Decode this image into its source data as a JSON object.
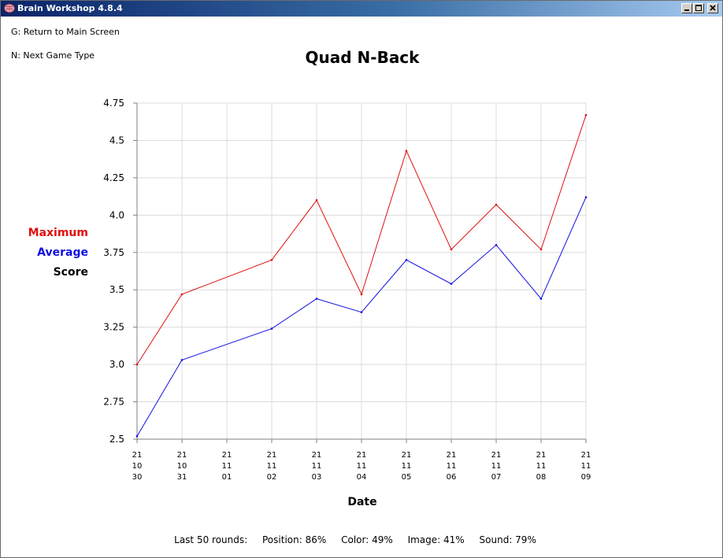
{
  "window": {
    "title": "Brain Workshop 4.8.4",
    "icon": "brain-icon",
    "controls": [
      "minimize-icon",
      "maximize-icon",
      "close-icon"
    ]
  },
  "hints": {
    "return": "G: Return to Main Screen",
    "next": "N: Next Game Type"
  },
  "legend": {
    "maximum": "Maximum",
    "average": "Average",
    "score": "Score"
  },
  "footer": {
    "prefix": "Last 50 rounds:",
    "position": "Position: 86%",
    "color": "Color: 49%",
    "image": "Image: 41%",
    "sound": "Sound: 79%"
  },
  "chart_data": {
    "type": "line",
    "title": "Quad N-Back",
    "xlabel": "Date",
    "ylabel": "Score",
    "categories": [
      [
        "21",
        "10",
        "30"
      ],
      [
        "21",
        "10",
        "31"
      ],
      [
        "21",
        "11",
        "01"
      ],
      [
        "21",
        "11",
        "02"
      ],
      [
        "21",
        "11",
        "03"
      ],
      [
        "21",
        "11",
        "04"
      ],
      [
        "21",
        "11",
        "05"
      ],
      [
        "21",
        "11",
        "06"
      ],
      [
        "21",
        "11",
        "07"
      ],
      [
        "21",
        "11",
        "08"
      ],
      [
        "21",
        "11",
        "09"
      ]
    ],
    "y_ticks": [
      "2.5",
      "2.75",
      "3.0",
      "3.25",
      "3.5",
      "3.75",
      "4.0",
      "4.25",
      "4.5",
      "4.75"
    ],
    "ylim": [
      2.5,
      4.75
    ],
    "grid": true,
    "series": [
      {
        "name": "Maximum",
        "color": "#e01010",
        "values": [
          3.0,
          3.47,
          null,
          3.7,
          4.1,
          3.47,
          4.43,
          3.77,
          4.07,
          3.77,
          4.67
        ]
      },
      {
        "name": "Average",
        "color": "#1010e0",
        "values": [
          2.52,
          3.03,
          null,
          3.24,
          3.44,
          3.35,
          3.7,
          3.54,
          3.8,
          3.44,
          4.12
        ]
      }
    ]
  }
}
